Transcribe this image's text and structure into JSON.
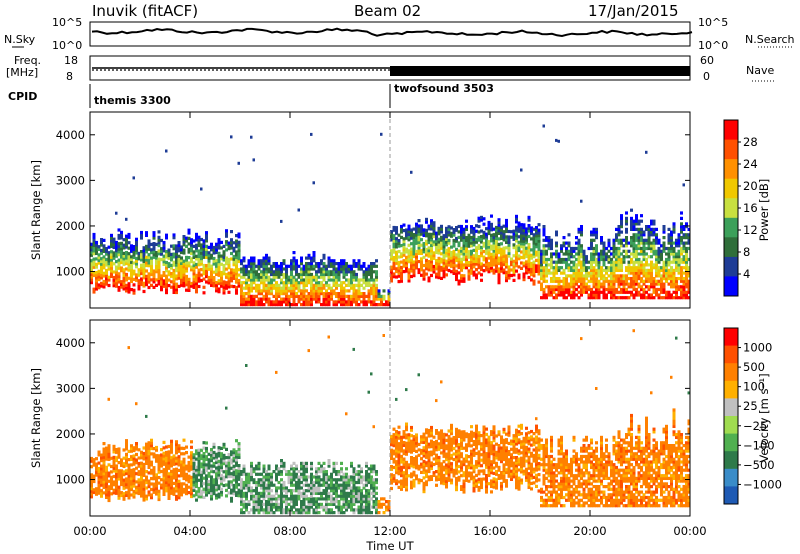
{
  "header": {
    "station": "Inuvik (fitACF)",
    "beam": "Beam 02",
    "date": "17/Jan/2015"
  },
  "panels": {
    "nsky_label": "N.Sky",
    "nsky_ticks": [
      "10^5",
      "10^0"
    ],
    "nsearch_label": "N.Search",
    "nsearch_ticks": [
      "10^5",
      "10^0"
    ],
    "freq_label_1": "Freq.",
    "freq_label_2": "[MHz]",
    "freq_ticks": [
      "18",
      "8"
    ],
    "nave_label": "Nave",
    "nave_ticks": [
      "60",
      "0"
    ],
    "cpid_label": "CPID",
    "cpid_modes": [
      "themis 3300",
      "twofsound 3503"
    ]
  },
  "chart_data": [
    {
      "type": "heatmap",
      "name": "power",
      "ylabel": "Slant Range [km]",
      "yticks": [
        1000,
        2000,
        3000,
        4000
      ],
      "ylim": [
        200,
        4500
      ],
      "xlim": [
        0,
        24
      ],
      "colorbar_label": "Power [dB]",
      "colorbar_ticks": [
        "28",
        "24",
        "20",
        "16",
        "12",
        "8",
        "4"
      ],
      "colors": [
        "#0000ff",
        "#1e3c96",
        "#2f6e3a",
        "#3ca05a",
        "#c8e040",
        "#f0c800",
        "#ff9000",
        "#ff5000",
        "#ff0000"
      ]
    },
    {
      "type": "heatmap",
      "name": "velocity",
      "ylabel": "Slant Range [km]",
      "yticks": [
        1000,
        2000,
        3000,
        4000
      ],
      "ylim": [
        200,
        4500
      ],
      "xlim": [
        0,
        24
      ],
      "xlabel": "Time UT",
      "xticks": [
        "00:00",
        "04:00",
        "08:00",
        "12:00",
        "16:00",
        "20:00",
        "00:00"
      ],
      "colorbar_label": "Velocity [m s⁻¹]",
      "colorbar_ticks": [
        "1000",
        "500",
        "100",
        "25",
        "−25",
        "−100",
        "−500",
        "−1000"
      ],
      "colors": [
        "#1e5ab4",
        "#3a8cc8",
        "#2e7a4a",
        "#50b050",
        "#a0dc50",
        "#c0c0c0",
        "#ffb000",
        "#ff8000",
        "#ff5000",
        "#ff0000"
      ]
    }
  ]
}
